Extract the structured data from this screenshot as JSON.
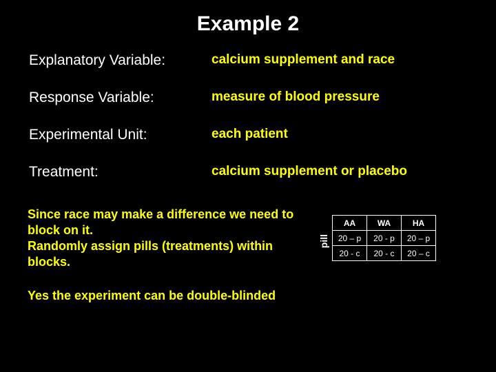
{
  "title": "Example 2",
  "definitions": [
    {
      "label": "Explanatory Variable:",
      "value": "calcium supplement and race"
    },
    {
      "label": "Response Variable:",
      "value": "measure of blood pressure"
    },
    {
      "label": "Experimental Unit:",
      "value": "each patient"
    },
    {
      "label": "Treatment:",
      "value": "calcium supplement or placebo"
    }
  ],
  "paragraph1": "Since race may make a difference we need to block on it.\nRandomly assign pills (treatments) within blocks.",
  "paragraph2": "Yes the experiment can be double-blinded",
  "table": {
    "row_label": "pill",
    "headers": [
      "AA",
      "WA",
      "HA"
    ],
    "rows": [
      [
        "20 – p",
        "20 - p",
        "20 – p"
      ],
      [
        "20 - c",
        "20 - c",
        "20 – c"
      ]
    ]
  },
  "colors": {
    "background": "#000000",
    "text": "#ffffff",
    "accent": "#ffff00",
    "border": "#ffffff"
  }
}
